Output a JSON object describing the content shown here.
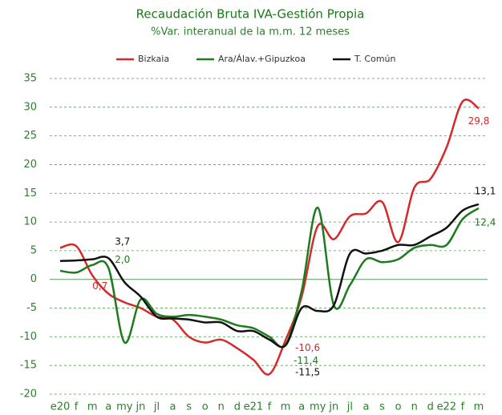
{
  "chart_data": {
    "type": "line",
    "title": "Recaudación Bruta IVA-Gestión Propia",
    "subtitle": "%Var. interanual de la m.m. 12 meses",
    "categories": [
      "e20",
      "f",
      "m",
      "a",
      "my",
      "jn",
      "jl",
      "a",
      "s",
      "o",
      "n",
      "d",
      "e21",
      "f",
      "m",
      "a",
      "my",
      "jn",
      "jl",
      "a",
      "s",
      "o",
      "n",
      "d",
      "e22",
      "f",
      "m"
    ],
    "series": [
      {
        "name": "Bizkaia",
        "color": "#d42a2a",
        "values": [
          5.5,
          5.8,
          0.7,
          -2.5,
          -4,
          -5,
          -6.5,
          -7,
          -10,
          -11,
          -10.5,
          -12,
          -14,
          -16.5,
          -10.6,
          -3,
          9.3,
          7,
          11,
          11.5,
          13.5,
          6.5,
          16,
          17.5,
          23,
          31,
          29.8
        ],
        "value_labels": [
          null,
          null,
          "0,7",
          null,
          null,
          null,
          null,
          null,
          null,
          null,
          null,
          null,
          null,
          null,
          "-10,6",
          null,
          null,
          null,
          null,
          null,
          null,
          null,
          null,
          null,
          null,
          null,
          "29,8"
        ]
      },
      {
        "name": "Ara/Álav.+Gipuzkoa",
        "color": "#1e7a1e",
        "values": [
          1.5,
          1.2,
          2.5,
          2.0,
          -11,
          -3.5,
          -6,
          -6.5,
          -6.2,
          -6.5,
          -7,
          -8,
          -8.5,
          -10,
          -11.4,
          -2,
          12.5,
          -4.5,
          -1,
          3.5,
          3,
          3.5,
          5.5,
          6,
          6,
          10.5,
          12.4
        ],
        "value_labels": [
          null,
          null,
          null,
          "2,0",
          null,
          null,
          null,
          null,
          null,
          null,
          null,
          null,
          null,
          null,
          "-11,4",
          null,
          null,
          null,
          null,
          null,
          null,
          null,
          null,
          null,
          null,
          null,
          "12,4"
        ]
      },
      {
        "name": "T. Común",
        "color": "#111111",
        "values": [
          3.2,
          3.3,
          3.5,
          3.7,
          -0.5,
          -3,
          -6.5,
          -6.8,
          -7,
          -7.5,
          -7.5,
          -9,
          -9,
          -10.5,
          -11.5,
          -5,
          -5.5,
          -4.5,
          4.5,
          4.5,
          5,
          6,
          6,
          7.5,
          9,
          12,
          13.1
        ],
        "value_labels": [
          null,
          null,
          null,
          "3,7",
          null,
          null,
          null,
          null,
          null,
          null,
          null,
          null,
          null,
          null,
          "-11,5",
          null,
          null,
          null,
          null,
          null,
          null,
          null,
          null,
          null,
          null,
          null,
          "13,1"
        ]
      }
    ],
    "ylim": [
      -20,
      35
    ],
    "yticks": [
      -20,
      -15,
      -10,
      -5,
      0,
      5,
      10,
      15,
      20,
      25,
      30,
      35
    ],
    "grid": true
  }
}
